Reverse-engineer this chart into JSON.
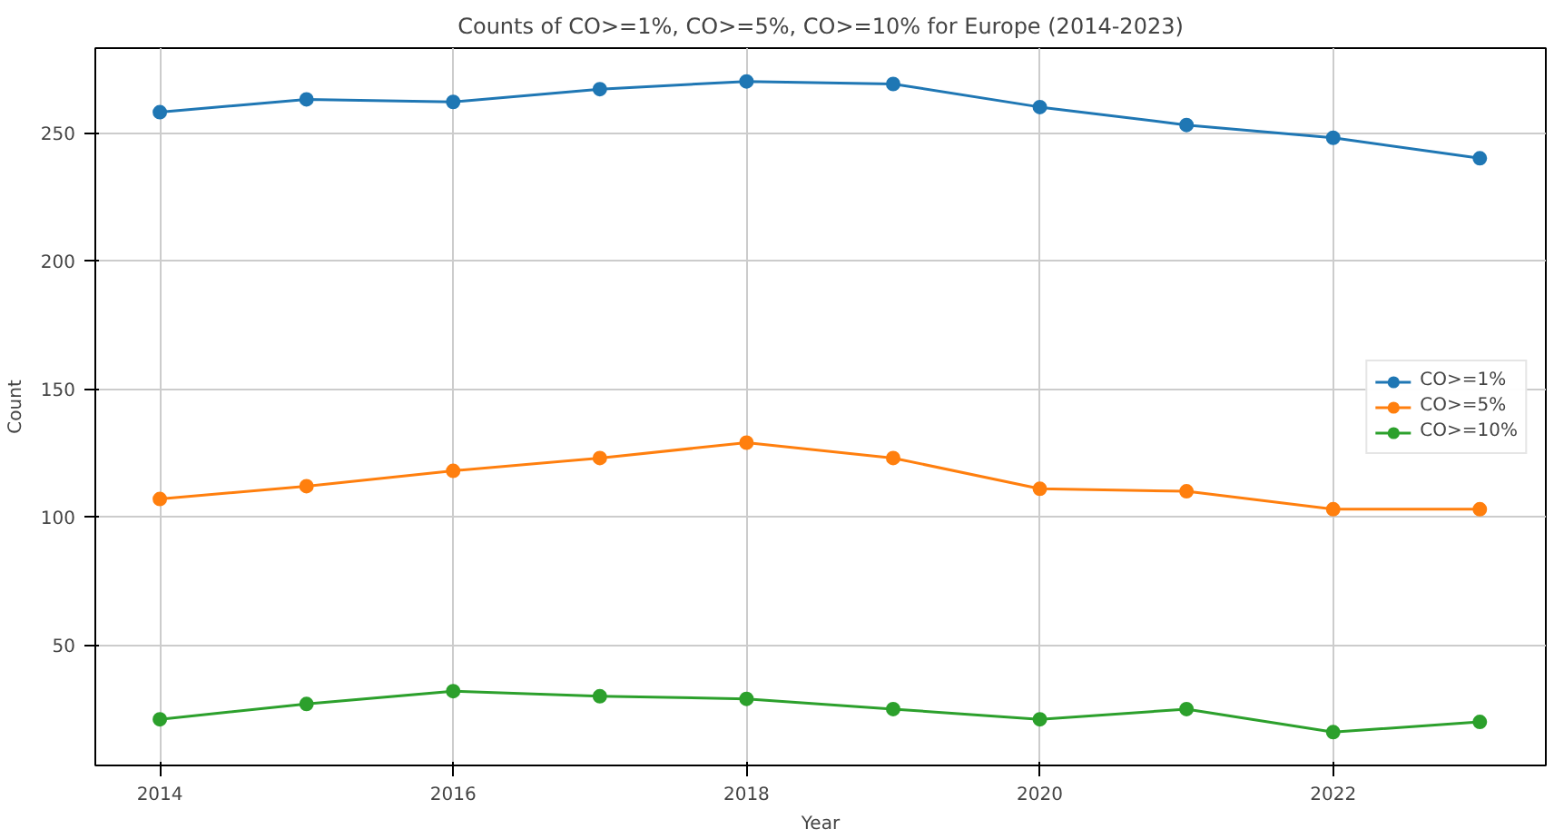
{
  "chart_data": {
    "type": "line",
    "title": "Counts of CO>=1%, CO>=5%, CO>=10% for Europe (2014-2023)",
    "xlabel": "Year",
    "ylabel": "Count",
    "x": [
      2014,
      2015,
      2016,
      2017,
      2018,
      2019,
      2020,
      2021,
      2022,
      2023
    ],
    "series": [
      {
        "name": "CO>=1%",
        "color": "#1f77b4",
        "values": [
          258,
          263,
          262,
          267,
          270,
          269,
          260,
          253,
          248,
          240
        ]
      },
      {
        "name": "CO>=5%",
        "color": "#ff7f0e",
        "values": [
          107,
          112,
          118,
          123,
          129,
          123,
          111,
          110,
          103,
          103
        ]
      },
      {
        "name": "CO>=10%",
        "color": "#2ca02c",
        "values": [
          21,
          27,
          32,
          30,
          29,
          25,
          21,
          25,
          16,
          20
        ]
      }
    ],
    "xlim": [
      2013.56,
      2023.45
    ],
    "ylim": [
      3,
      283
    ],
    "xticks": [
      2014,
      2016,
      2018,
      2020,
      2022
    ],
    "yticks": [
      50,
      100,
      150,
      200,
      250
    ],
    "grid": true,
    "legend": "right",
    "marker": "circle",
    "line_style": "solid"
  }
}
